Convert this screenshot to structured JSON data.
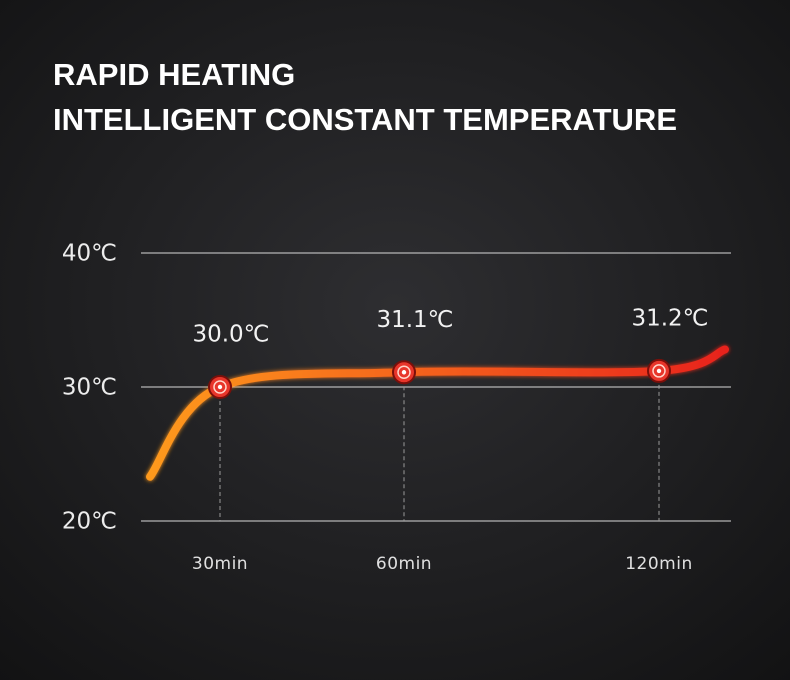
{
  "chart_data": {
    "type": "line",
    "title": "RAPID HEATING",
    "subtitle": "INTELLIGENT CONSTANT TEMPERATURE",
    "categories": [
      null,
      "30min",
      "60min",
      "120min",
      null
    ],
    "series": [
      {
        "color": [
          "#ff9a1f",
          "#e8231a"
        ],
        "marker_color": "#e8352a",
        "values": [
          23.3,
          30.0,
          31.1,
          31.2,
          32.8
        ],
        "value_labels": [
          null,
          "30.0℃",
          "31.1℃",
          "31.2℃",
          null
        ]
      }
    ],
    "ylim": [
      20,
      40
    ],
    "yticks": [
      {
        "value": 20,
        "label": "20℃"
      },
      {
        "value": 30,
        "label": "30℃"
      },
      {
        "value": 40,
        "label": "40℃"
      }
    ],
    "grid": true
  }
}
